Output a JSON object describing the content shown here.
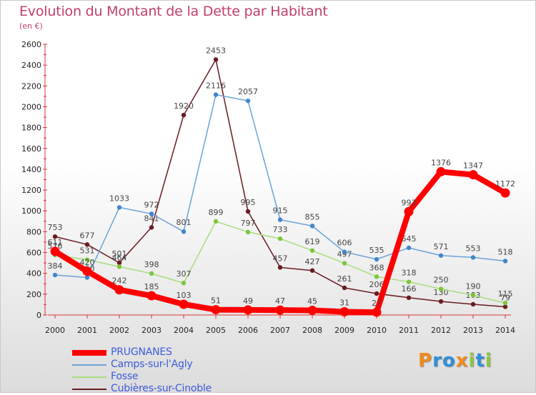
{
  "title": "Evolution du Montant de la Dette par Habitant",
  "unit_label": "(en €)",
  "logo": {
    "text": "Proxiti",
    "letters": [
      {
        "ch": "P",
        "color": "#f08a1e"
      },
      {
        "ch": "r",
        "color": "#2f8fd8"
      },
      {
        "ch": "o",
        "color": "#2f8fd8"
      },
      {
        "ch": "x",
        "color": "#f08a1e"
      },
      {
        "ch": "i",
        "color": "#8cc63e"
      },
      {
        "ch": "t",
        "color": "#2f8fd8"
      },
      {
        "ch": "i",
        "color": "#8cc63e"
      }
    ]
  },
  "chart_data": {
    "type": "line",
    "x": [
      "2000",
      "2001",
      "2002",
      "2003",
      "2004",
      "2005",
      "2006",
      "2007",
      "2008",
      "2009",
      "2010",
      "2011",
      "2012",
      "2013",
      "2014"
    ],
    "ylim": [
      0,
      2600
    ],
    "yticks": [
      "0",
      "200",
      "400",
      "600",
      "800",
      "1000",
      "1200",
      "1400",
      "1600",
      "1800",
      "2000",
      "2200",
      "2400",
      "2600"
    ],
    "grid": false,
    "legend_position": "bottom-left",
    "series": [
      {
        "name": "Cubières-sur-Cinoble",
        "color": "#6b1a1f",
        "point_color": "#6b1a1f",
        "values": [
          753,
          677,
          501,
          841,
          1920,
          2453,
          995,
          457,
          427,
          261,
          206,
          166,
          130,
          103,
          79
        ],
        "labels": [
          "753",
          "677",
          "501",
          "841",
          "1920",
          "2453",
          "995",
          "457",
          "427",
          "261",
          "206",
          "166",
          "130",
          "103",
          "79"
        ]
      },
      {
        "name": "Fosse",
        "color": "#a6de7c",
        "point_color": "#7cc63e",
        "values": [
          576,
          531,
          464,
          398,
          307,
          899,
          797,
          733,
          619,
          497,
          368,
          318,
          250,
          190,
          115
        ],
        "labels": [
          "576",
          "531",
          "464",
          "398",
          "307",
          "899",
          "797",
          "733",
          "619",
          "497",
          "368",
          "318",
          "250",
          "190",
          "115"
        ]
      },
      {
        "name": "Camps-sur-l'Agly",
        "color": "#6aa3d8",
        "point_color": "#3f86cf",
        "values": [
          384,
          360,
          1033,
          972,
          801,
          2116,
          2057,
          915,
          855,
          606,
          535,
          645,
          571,
          553,
          518
        ],
        "labels": [
          "384",
          "360",
          "1033",
          "972",
          "801",
          "2116",
          "2057",
          "915",
          "855",
          "606",
          "535",
          "645",
          "571",
          "553",
          "518"
        ]
      },
      {
        "name": "PRUGNANES",
        "color": "#ff0000",
        "point_color": "#ff0000",
        "values": [
          611,
          420,
          242,
          185,
          103,
          51,
          49,
          47,
          45,
          31,
          27,
          993,
          1376,
          1347,
          1172
        ],
        "labels": [
          "611",
          "420",
          "242",
          "185",
          "103",
          "51",
          "49",
          "47",
          "45",
          "31",
          "27",
          "993",
          "1376",
          "1347",
          "1172"
        ]
      }
    ],
    "legend_order": [
      "PRUGNANES",
      "Camps-sur-l'Agly",
      "Fosse",
      "Cubières-sur-Cinoble"
    ]
  }
}
